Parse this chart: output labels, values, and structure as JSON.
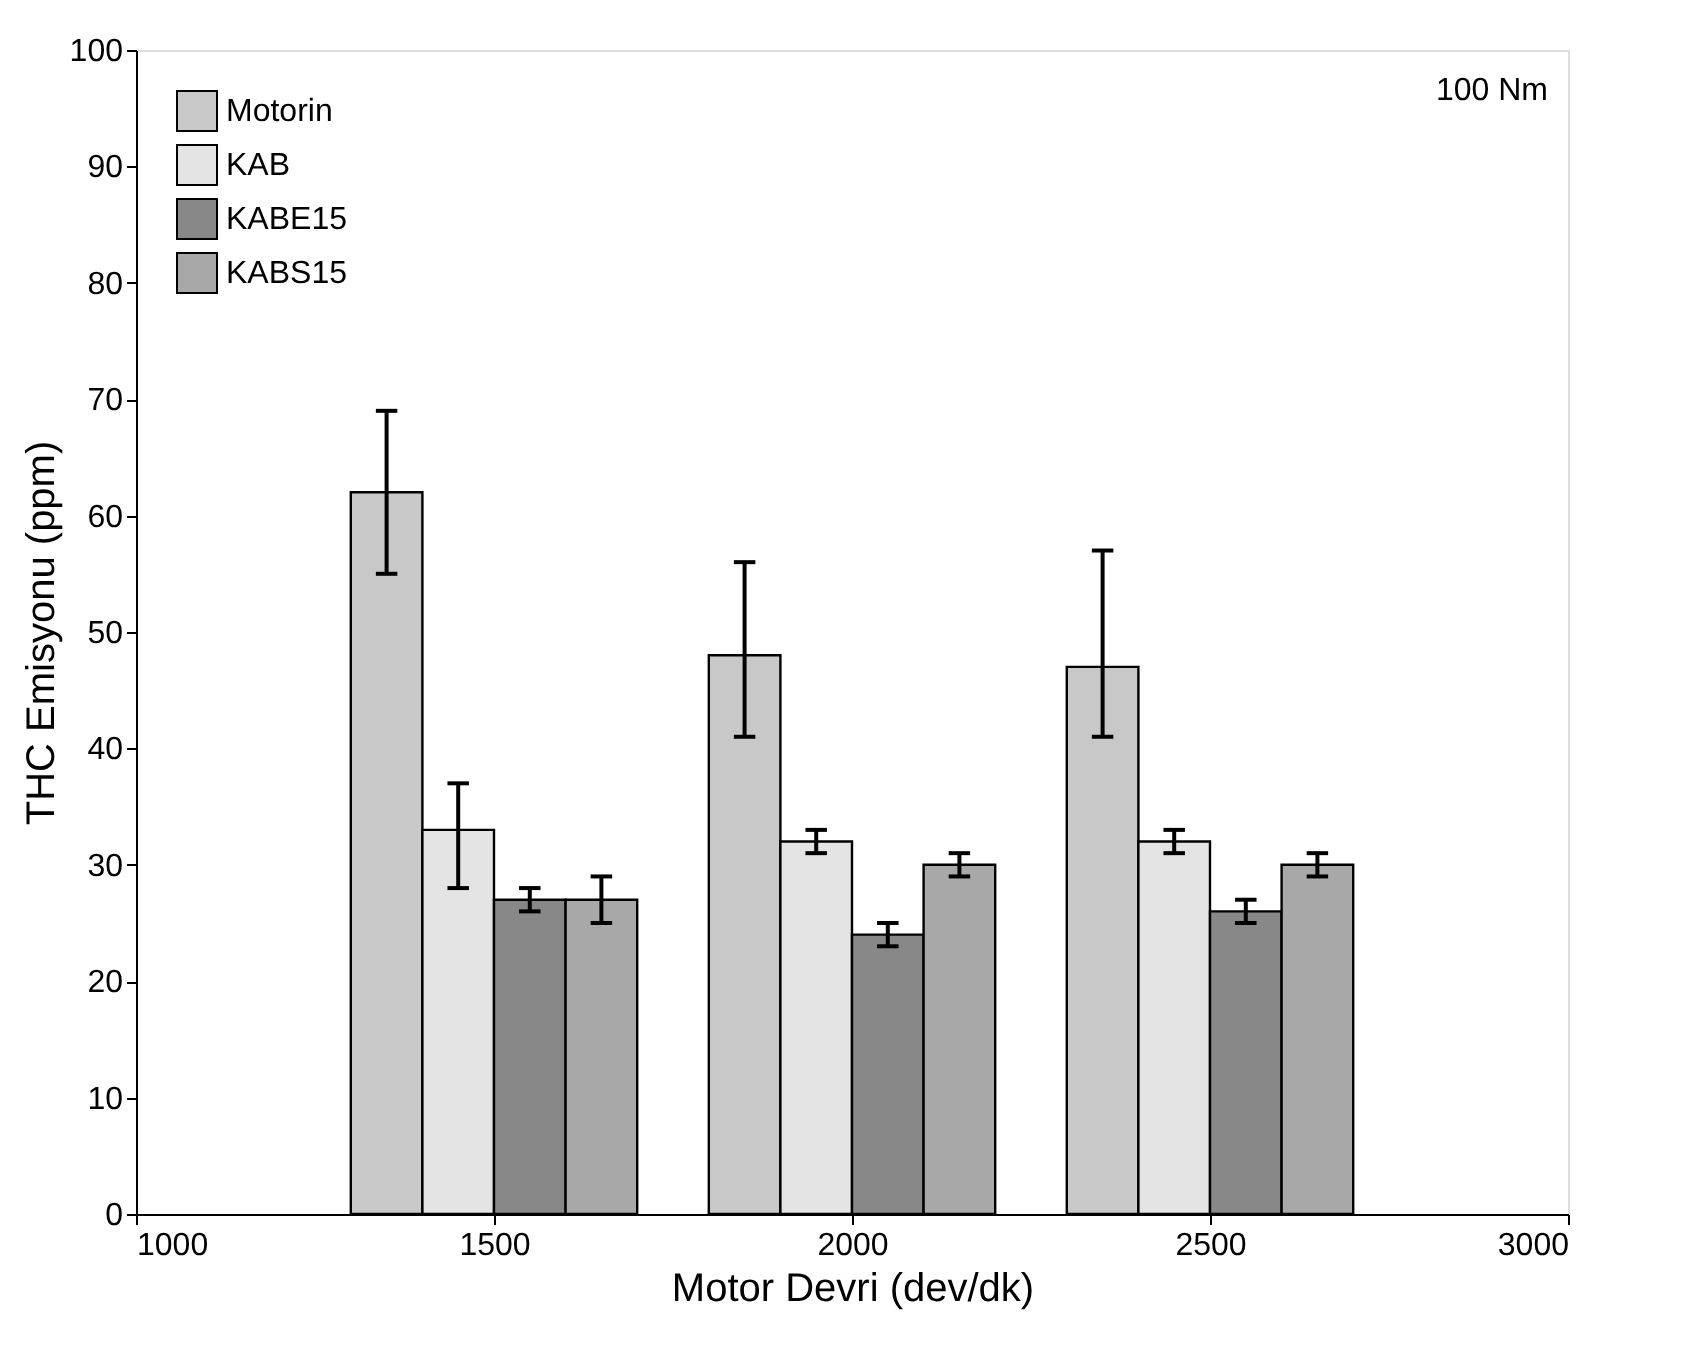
{
  "chart_data": {
    "type": "bar",
    "xlabel": "Motor Devri (dev/dk)",
    "ylabel": "THC Emisyonu (ppm)",
    "x": [
      1500,
      2000,
      2500
    ],
    "series": [
      {
        "name": "Motorin",
        "color": "#c8c8c8",
        "values": [
          62,
          48,
          47
        ],
        "errors": [
          [
            55,
            69
          ],
          [
            41,
            56
          ],
          [
            41,
            57
          ]
        ]
      },
      {
        "name": "KAB",
        "color": "#e4e4e4",
        "values": [
          33,
          32,
          32
        ],
        "errors": [
          [
            28,
            37
          ],
          [
            31,
            33
          ],
          [
            31,
            33
          ]
        ]
      },
      {
        "name": "KABE15",
        "color": "#888888",
        "values": [
          27,
          24,
          26
        ],
        "errors": [
          [
            26,
            28
          ],
          [
            23,
            25
          ],
          [
            25,
            27
          ]
        ]
      },
      {
        "name": "KABS15",
        "color": "#a8a8a8",
        "values": [
          27,
          30,
          30
        ],
        "errors": [
          [
            25,
            29
          ],
          [
            29,
            31
          ],
          [
            29,
            31
          ]
        ]
      }
    ],
    "xlim": [
      1000,
      3000
    ],
    "xticks": [
      1000,
      1500,
      2000,
      2500,
      3000
    ],
    "ylim": [
      0,
      100
    ],
    "yticks": [
      0,
      10,
      20,
      30,
      40,
      50,
      60,
      70,
      80,
      90,
      100
    ],
    "annotations": [
      "100 Nm"
    ],
    "legend": "top left",
    "grid": false
  }
}
